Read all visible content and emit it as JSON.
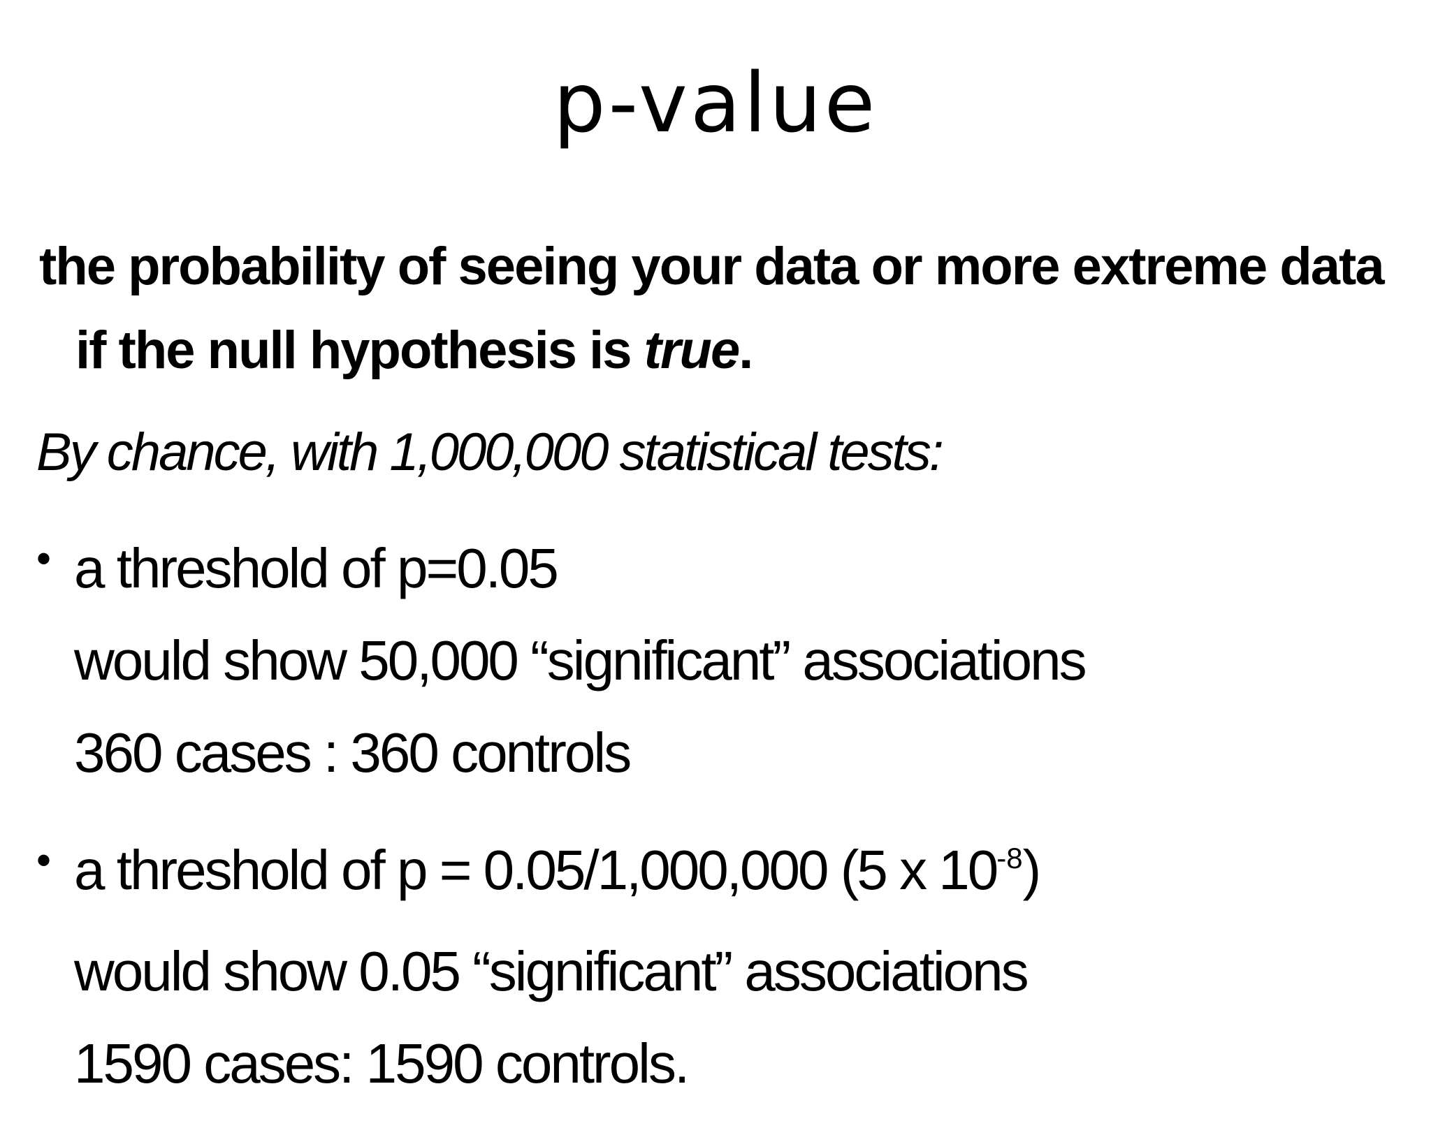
{
  "title": "p-value",
  "definition": {
    "text_main": "the probability of seeing your data or more extreme data if the null hypothesis is ",
    "text_emph": "true",
    "text_end": "."
  },
  "subhead": "By chance, with 1,000,000 statistical tests:",
  "bullets": [
    {
      "bullet": "•",
      "line1": "a threshold of p=0.05",
      "line2": "would show 50,000 “significant” associations",
      "line3": "360 cases : 360 controls"
    },
    {
      "bullet": "•",
      "line1_pre": "a threshold of p = 0.05/1,000,000 (5 x 10",
      "line1_exp": "-8",
      "line1_post": ")",
      "line2": "would show 0.05 “significant” associations",
      "line3": "1590 cases: 1590 controls."
    }
  ]
}
